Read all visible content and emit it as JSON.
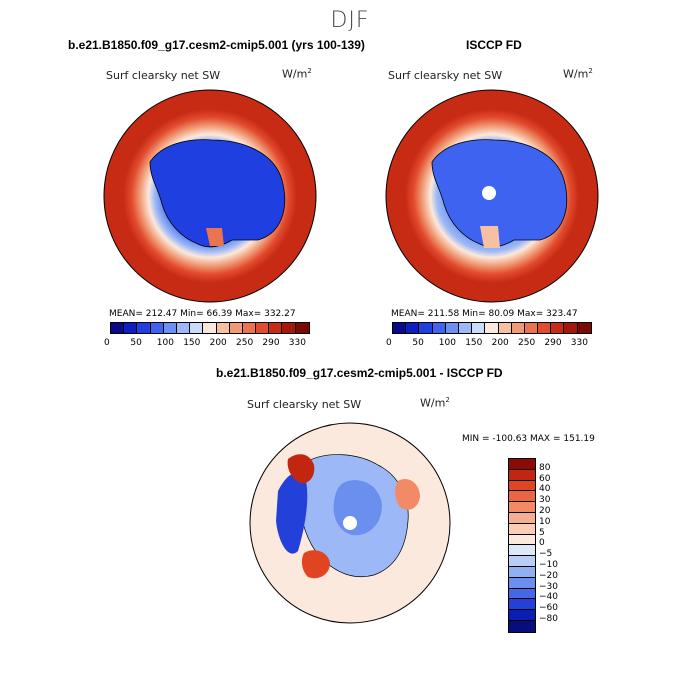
{
  "season": "DJF",
  "left_panel": {
    "title": "b.e21.B1850.f09_g17.cesm2-cmip5.001 (yrs 100-139)",
    "variable": "Surf clearsky net SW",
    "units_base": "W/m",
    "units_exp": "2",
    "stats": "MEAN= 212.47   Min=   66.39   Max= 332.27"
  },
  "right_panel": {
    "title": "ISCCP FD",
    "variable": "Surf clearsky net SW",
    "units_base": "W/m",
    "units_exp": "2",
    "stats": "MEAN= 211.58   Min=   80.09   Max= 323.47"
  },
  "abs_colorbar": {
    "labels": [
      "0",
      "50",
      "100",
      "150",
      "200",
      "250",
      "290",
      "330"
    ],
    "colors": [
      "#0a0a8c",
      "#0b1fc2",
      "#1f3fe0",
      "#3d63f0",
      "#6c8ff2",
      "#9cb8f6",
      "#c9dcfa",
      "#fbe9dd",
      "#f6c1a3",
      "#f19b76",
      "#ec734f",
      "#e24b2d",
      "#c72b14",
      "#a5170b",
      "#7a0a06"
    ]
  },
  "diff_panel": {
    "title": "b.e21.B1850.f09_g17.cesm2-cmip5.001 - ISCCP FD",
    "variable": "Surf clearsky net SW",
    "units_base": "W/m",
    "units_exp": "2",
    "minmax": "MIN = -100.63  MAX = 151.19"
  },
  "diff_colorbar": {
    "labels": [
      "80",
      "60",
      "40",
      "30",
      "20",
      "10",
      "5",
      "0",
      "−5",
      "−10",
      "−20",
      "−30",
      "−40",
      "−60",
      "−80"
    ],
    "colors": [
      "#8c0a08",
      "#c22510",
      "#e04421",
      "#ec6540",
      "#f28a66",
      "#f6ae90",
      "#f9cdb6",
      "#fbe9dd",
      "#dfe8fb",
      "#b9cdf7",
      "#90b0f2",
      "#6a8fee",
      "#4468e6",
      "#2341d8",
      "#0a1faf",
      "#060d7c"
    ]
  }
}
